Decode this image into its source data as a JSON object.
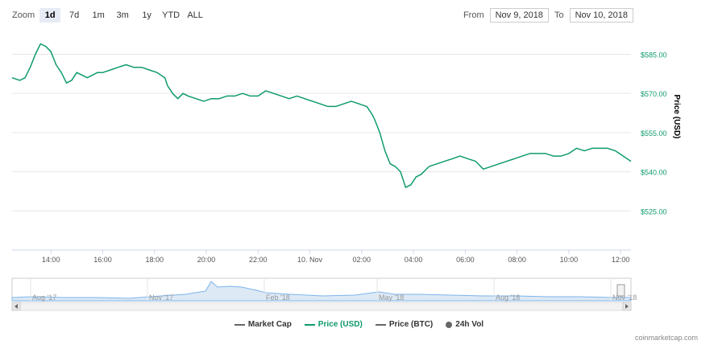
{
  "toolbar": {
    "zoom_label": "Zoom",
    "buttons": [
      "1d",
      "7d",
      "1m",
      "3m",
      "1y",
      "YTD",
      "ALL"
    ],
    "active": "1d"
  },
  "range": {
    "from_label": "From",
    "from_value": "Nov 9, 2018",
    "to_label": "To",
    "to_value": "Nov 10, 2018"
  },
  "colors": {
    "price_usd": "#0f9b6a",
    "navigator_line": "#7cb5ec",
    "grid": "#e6e6e6",
    "market_cap": "#666666",
    "price_btc": "#666666",
    "volume": "#666666"
  },
  "chart_data": {
    "type": "line",
    "ylabel": "Price (USD)",
    "ylim": [
      510,
      595
    ],
    "yticks": [
      525,
      540,
      555,
      570,
      585
    ],
    "ytick_labels": [
      "$525.00",
      "$540.00",
      "$555.00",
      "$570.00",
      "$585.00"
    ],
    "xlim": [
      12.5,
      36.4
    ],
    "xticks": [
      14,
      16,
      18,
      20,
      22,
      24,
      26,
      28,
      30,
      32,
      34,
      36
    ],
    "xtick_labels": [
      "14:00",
      "16:00",
      "18:00",
      "20:00",
      "22:00",
      "10. Nov",
      "02:00",
      "04:00",
      "06:00",
      "08:00",
      "10:00",
      "12:00"
    ],
    "grid": true,
    "series": [
      {
        "name": "Price (USD)",
        "x": [
          12.5,
          12.8,
          13.0,
          13.2,
          13.4,
          13.6,
          13.8,
          14.0,
          14.2,
          14.4,
          14.6,
          14.8,
          15.0,
          15.2,
          15.4,
          15.6,
          15.8,
          16.0,
          16.3,
          16.6,
          16.9,
          17.2,
          17.5,
          17.8,
          18.1,
          18.4,
          18.5,
          18.7,
          18.9,
          19.1,
          19.3,
          19.6,
          19.9,
          20.2,
          20.5,
          20.8,
          21.1,
          21.4,
          21.7,
          22.0,
          22.3,
          22.6,
          22.9,
          23.2,
          23.5,
          23.8,
          24.1,
          24.4,
          24.7,
          25.0,
          25.3,
          25.6,
          25.9,
          26.2,
          26.4,
          26.5,
          26.7,
          26.9,
          27.1,
          27.3,
          27.5,
          27.7,
          27.9,
          28.1,
          28.3,
          28.6,
          28.9,
          29.2,
          29.5,
          29.8,
          30.1,
          30.4,
          30.7,
          31.0,
          31.3,
          31.6,
          31.9,
          32.2,
          32.5,
          32.8,
          33.1,
          33.4,
          33.7,
          34.0,
          34.3,
          34.6,
          34.9,
          35.2,
          35.5,
          35.8,
          36.1,
          36.4
        ],
        "y": [
          576,
          575,
          576,
          580,
          585,
          589,
          588,
          586,
          581,
          578,
          574,
          575,
          578,
          577,
          576,
          577,
          578,
          578,
          579,
          580,
          581,
          580,
          580,
          579,
          578,
          576,
          573,
          570,
          568,
          570,
          569,
          568,
          567,
          568,
          568,
          569,
          569,
          570,
          569,
          569,
          571,
          570,
          569,
          568,
          569,
          568,
          567,
          566,
          565,
          565,
          566,
          567,
          566,
          565,
          562,
          560,
          555,
          548,
          543,
          542,
          540,
          534,
          535,
          538,
          539,
          542,
          543,
          544,
          545,
          546,
          545,
          544,
          541,
          542,
          543,
          544,
          545,
          546,
          547,
          547,
          547,
          546,
          546,
          547,
          549,
          548,
          549,
          549,
          549,
          548,
          546,
          544
        ]
      }
    ],
    "navigator": {
      "labels": [
        "Aug '17",
        "Nov '17",
        "Feb '18",
        "May '18",
        "Aug '18",
        "Nov '18"
      ]
    }
  },
  "legend": {
    "market_cap": "Market Cap",
    "price_usd": "Price (USD)",
    "price_btc": "Price (BTC)",
    "volume": "24h Vol"
  },
  "credit": "coinmarketcap.com"
}
